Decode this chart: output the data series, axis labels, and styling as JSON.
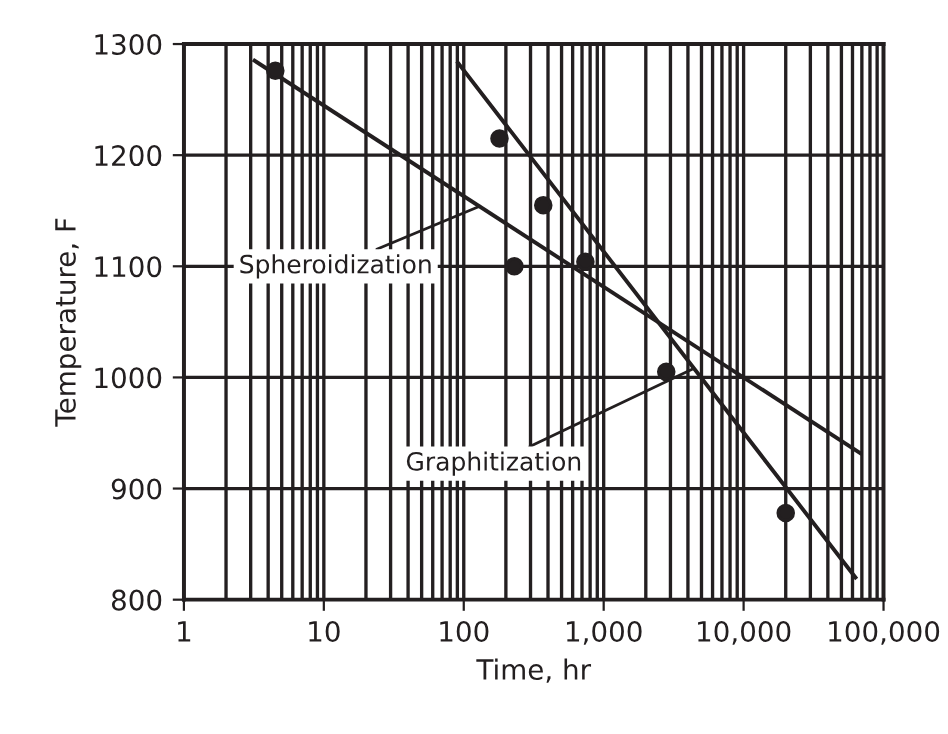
{
  "chart_data": {
    "type": "line",
    "xlabel": "Time, hr",
    "ylabel": "Temperature, F",
    "log": "x",
    "grid": true,
    "line_style": "solid",
    "xlim": [
      1,
      100000
    ],
    "xticks": [
      1,
      10,
      100,
      {
        "value": 1000,
        "label": "1,000"
      },
      {
        "value": 10000,
        "label": "10,000"
      },
      {
        "value": 100000,
        "label": "100,000"
      }
    ],
    "ylim": [
      800,
      1300
    ],
    "yticks": [
      800,
      900,
      1000,
      1100,
      1200,
      1300
    ],
    "series": [
      {
        "color": "#231f20",
        "x": [
          3.2,
          68000
        ],
        "values": [
          1285,
          932
        ]
      },
      {
        "type": "scatter",
        "color": "#231f20",
        "marker": "circle",
        "x": [
          4.5,
          230
        ],
        "values": [
          1276,
          1100
        ]
      },
      {
        "color": "#231f20",
        "x": [
          91,
          63000
        ],
        "values": [
          1283,
          820
        ]
      },
      {
        "type": "scatter",
        "color": "#231f20",
        "marker": "circle",
        "x": [
          180,
          370,
          740,
          2800,
          20000
        ],
        "values": [
          1215,
          1155,
          1104,
          1005,
          878
        ]
      }
    ],
    "annotations": [
      {
        "text": "Spheroidization",
        "x": 130,
        "y": 1154
      },
      {
        "text": "Graphitization",
        "x": 4400,
        "y": 1008
      }
    ]
  }
}
